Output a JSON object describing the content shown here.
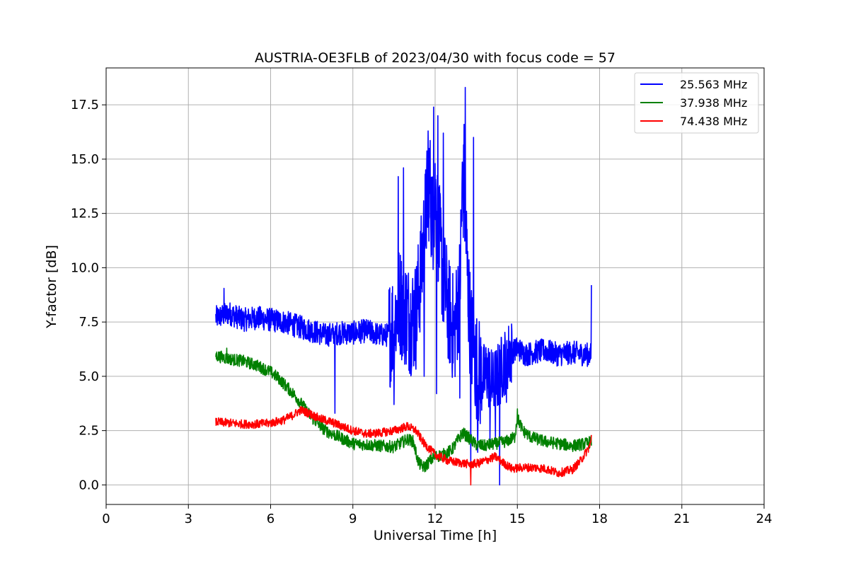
{
  "chart_data": {
    "type": "line",
    "title": "AUSTRIA-OE3FLB of 2023/04/30 with focus code = 57",
    "xlabel": "Universal Time [h]",
    "ylabel": "Y-factor [dB]",
    "xlim": [
      0,
      24
    ],
    "ylim": [
      -0.9,
      19.2
    ],
    "xticks": [
      0,
      3,
      6,
      9,
      12,
      15,
      18,
      21,
      24
    ],
    "xtick_labels": [
      "0",
      "3",
      "6",
      "9",
      "12",
      "15",
      "18",
      "21",
      "24"
    ],
    "yticks": [
      0.0,
      2.5,
      5.0,
      7.5,
      10.0,
      12.5,
      15.0,
      17.5
    ],
    "ytick_labels": [
      "0.0",
      "2.5",
      "5.0",
      "7.5",
      "10.0",
      "12.5",
      "15.0",
      "17.5"
    ],
    "grid": true,
    "legend_position": "top-right",
    "series": [
      {
        "name": "25.563 MHz",
        "color": "#0000ff",
        "x": [
          4.0,
          4.5,
          5.0,
          5.5,
          6.0,
          6.5,
          7.0,
          7.5,
          8.0,
          8.5,
          9.0,
          9.5,
          10.0,
          10.3,
          10.5,
          10.7,
          10.9,
          11.1,
          11.3,
          11.5,
          11.7,
          11.8,
          11.9,
          12.0,
          12.1,
          12.3,
          12.5,
          12.7,
          12.9,
          13.0,
          13.1,
          13.2,
          13.3,
          13.5,
          13.7,
          13.9,
          14.1,
          14.3,
          14.5,
          14.7,
          15.0,
          15.3,
          15.6,
          16.0,
          16.5,
          17.0,
          17.5,
          17.7
        ],
        "y": [
          7.7,
          7.9,
          7.6,
          7.7,
          7.6,
          7.5,
          7.3,
          7.1,
          6.9,
          7.0,
          7.0,
          7.1,
          6.9,
          6.9,
          7.5,
          8.5,
          8.0,
          7.6,
          7.8,
          10.0,
          13.0,
          14.0,
          12.0,
          13.5,
          12.0,
          9.5,
          8.0,
          7.0,
          9.0,
          14.0,
          12.5,
          9.0,
          7.0,
          5.5,
          4.8,
          5.2,
          4.6,
          5.0,
          5.6,
          6.0,
          6.3,
          6.0,
          6.1,
          6.2,
          6.0,
          6.1,
          6.0,
          6.0
        ],
        "spikes": [
          [
            4.3,
            9.05
          ],
          [
            8.35,
            3.3
          ],
          [
            10.5,
            3.7
          ],
          [
            10.65,
            14.2
          ],
          [
            10.85,
            14.6
          ],
          [
            11.6,
            5.0
          ],
          [
            11.75,
            16.3
          ],
          [
            11.95,
            17.4
          ],
          [
            12.05,
            4.2
          ],
          [
            12.1,
            17.0
          ],
          [
            12.3,
            16.2
          ],
          [
            12.5,
            5.8
          ],
          [
            12.9,
            4.0
          ],
          [
            13.05,
            16.6
          ],
          [
            13.1,
            18.3
          ],
          [
            13.3,
            0.7
          ],
          [
            13.4,
            16.0
          ],
          [
            13.55,
            1.5
          ],
          [
            14.0,
            2.0
          ],
          [
            14.2,
            2.1
          ],
          [
            14.35,
            0.0
          ],
          [
            14.6,
            3.8
          ],
          [
            17.7,
            9.2
          ]
        ]
      },
      {
        "name": "37.938 MHz",
        "color": "#008000",
        "x": [
          4.0,
          4.5,
          5.0,
          5.5,
          6.0,
          6.3,
          6.6,
          6.9,
          7.2,
          7.5,
          8.0,
          8.5,
          9.0,
          9.5,
          10.0,
          10.5,
          11.0,
          11.2,
          11.4,
          11.6,
          11.8,
          12.0,
          12.3,
          12.6,
          12.8,
          13.0,
          13.2,
          13.5,
          13.8,
          14.2,
          14.6,
          14.9,
          15.0,
          15.2,
          15.5,
          16.0,
          16.5,
          17.0,
          17.5,
          17.7
        ],
        "y": [
          5.95,
          5.8,
          5.7,
          5.5,
          5.2,
          4.9,
          4.5,
          4.1,
          3.6,
          3.1,
          2.5,
          2.2,
          1.9,
          1.85,
          1.8,
          1.75,
          2.1,
          2.0,
          1.0,
          0.8,
          1.1,
          1.3,
          1.4,
          1.6,
          2.0,
          2.4,
          2.2,
          1.85,
          1.8,
          1.9,
          2.0,
          2.2,
          3.1,
          2.5,
          2.2,
          2.0,
          1.9,
          1.8,
          1.9,
          2.0
        ],
        "spikes": [
          [
            4.4,
            6.3
          ],
          [
            15.0,
            3.5
          ]
        ]
      },
      {
        "name": "74.438 MHz",
        "color": "#ff0000",
        "x": [
          4.0,
          4.5,
          5.0,
          5.5,
          6.0,
          6.5,
          6.8,
          7.1,
          7.4,
          7.8,
          8.2,
          8.6,
          9.0,
          9.5,
          10.0,
          10.5,
          11.0,
          11.3,
          11.6,
          12.0,
          12.5,
          13.0,
          13.3,
          13.6,
          14.0,
          14.2,
          14.5,
          14.8,
          15.2,
          15.6,
          16.0,
          16.5,
          17.0,
          17.3,
          17.6,
          17.7
        ],
        "y": [
          2.9,
          2.85,
          2.8,
          2.8,
          2.85,
          3.0,
          3.2,
          3.45,
          3.3,
          3.05,
          2.9,
          2.7,
          2.5,
          2.35,
          2.4,
          2.5,
          2.7,
          2.5,
          1.9,
          1.4,
          1.1,
          1.0,
          0.95,
          1.0,
          1.2,
          1.3,
          1.0,
          0.75,
          0.8,
          0.8,
          0.75,
          0.55,
          0.7,
          1.1,
          1.7,
          2.0
        ],
        "spikes": [
          [
            13.3,
            0.0
          ],
          [
            17.7,
            2.3
          ]
        ]
      }
    ]
  }
}
